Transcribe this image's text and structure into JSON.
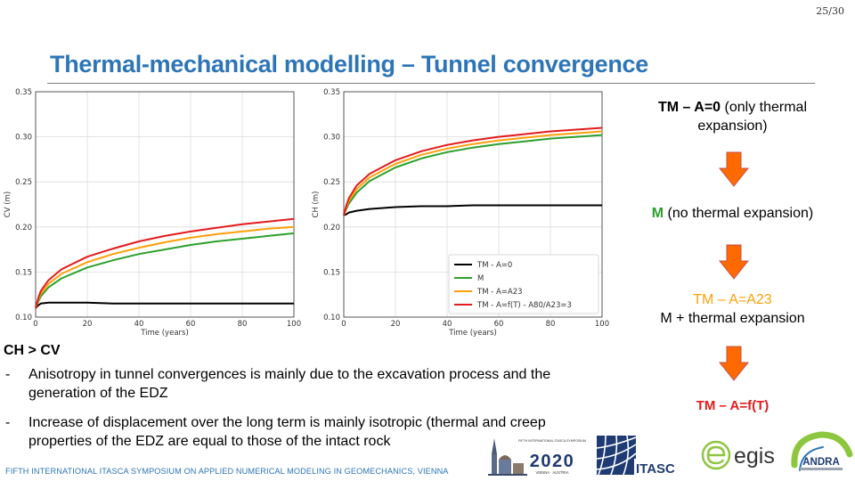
{
  "page_number": "25/30",
  "title": "Thermal-mechanical modelling – Tunnel convergence",
  "chart_data": [
    {
      "type": "line",
      "title": "",
      "xlabel": "Time (years)",
      "ylabel": "CV (m)",
      "xlim": [
        0,
        100
      ],
      "ylim": [
        0.1,
        0.35
      ],
      "xticks": [
        "0",
        "20",
        "40",
        "60",
        "80",
        "100"
      ],
      "yticks": [
        "0.10",
        "0.15",
        "0.20",
        "0.25",
        "0.30",
        "0.35"
      ],
      "grid": true,
      "legend": "none",
      "x": [
        0,
        1,
        2,
        5,
        10,
        20,
        30,
        40,
        50,
        60,
        70,
        80,
        90,
        100
      ],
      "series": [
        {
          "name": "TM - A=0",
          "color": "#000000",
          "values": [
            0.11,
            0.113,
            0.115,
            0.116,
            0.116,
            0.116,
            0.115,
            0.115,
            0.115,
            0.115,
            0.115,
            0.115,
            0.115,
            0.115
          ]
        },
        {
          "name": "M",
          "color": "#2CA02C",
          "values": [
            0.11,
            0.117,
            0.123,
            0.133,
            0.143,
            0.155,
            0.163,
            0.17,
            0.175,
            0.18,
            0.184,
            0.187,
            0.19,
            0.193
          ]
        },
        {
          "name": "TM - A=A23",
          "color": "#FF9F0A",
          "values": [
            0.11,
            0.119,
            0.126,
            0.137,
            0.148,
            0.161,
            0.17,
            0.177,
            0.183,
            0.188,
            0.192,
            0.195,
            0.198,
            0.2
          ]
        },
        {
          "name": "TM - A=f(T) - A80/A23=3",
          "color": "#E41A1C",
          "values": [
            0.11,
            0.121,
            0.129,
            0.141,
            0.153,
            0.167,
            0.176,
            0.184,
            0.19,
            0.195,
            0.199,
            0.203,
            0.206,
            0.209
          ]
        }
      ]
    },
    {
      "type": "line",
      "title": "",
      "xlabel": "Time (years)",
      "ylabel": "CH (m)",
      "xlim": [
        0,
        100
      ],
      "ylim": [
        0.1,
        0.35
      ],
      "xticks": [
        "0",
        "20",
        "40",
        "60",
        "80",
        "100"
      ],
      "yticks": [
        "0.10",
        "0.15",
        "0.20",
        "0.25",
        "0.30",
        "0.35"
      ],
      "grid": true,
      "legend": "bottom-right",
      "x": [
        0,
        1,
        2,
        5,
        10,
        20,
        30,
        40,
        50,
        60,
        70,
        80,
        90,
        100
      ],
      "series": [
        {
          "name": "TM - A=0",
          "color": "#000000",
          "values": [
            0.213,
            0.214,
            0.216,
            0.218,
            0.22,
            0.222,
            0.223,
            0.223,
            0.224,
            0.224,
            0.224,
            0.224,
            0.224,
            0.224
          ]
        },
        {
          "name": "M",
          "color": "#2CA02C",
          "values": [
            0.213,
            0.22,
            0.226,
            0.238,
            0.251,
            0.266,
            0.276,
            0.283,
            0.288,
            0.292,
            0.295,
            0.298,
            0.3,
            0.302
          ]
        },
        {
          "name": "TM - A=A23",
          "color": "#FF9F0A",
          "values": [
            0.213,
            0.222,
            0.229,
            0.242,
            0.255,
            0.27,
            0.28,
            0.287,
            0.292,
            0.296,
            0.299,
            0.302,
            0.304,
            0.306
          ]
        },
        {
          "name": "TM - A=f(T) - A80/A23=3",
          "color": "#E41A1C",
          "values": [
            0.213,
            0.224,
            0.232,
            0.246,
            0.259,
            0.274,
            0.284,
            0.291,
            0.296,
            0.3,
            0.303,
            0.306,
            0.308,
            0.31
          ]
        }
      ]
    }
  ],
  "flow": {
    "step1_bold": "TM – A=0",
    "step1_rest": " (only thermal expansion)",
    "step2_bold": "M",
    "step2_rest": " (no thermal expansion)",
    "step3_line1": "TM – A=A23",
    "step3_line2": "M + thermal expansion",
    "step4": "TM – A=f(T)",
    "colors": {
      "step2": "#2CA02C",
      "step3": "#FF9F0A",
      "step4": "#E41A1C",
      "arrow_fill": "#FF6A00",
      "arrow_stroke": "#C0504D"
    }
  },
  "text": {
    "ch_cv": "CH > CV",
    "bullet1": "Anisotropy in tunnel convergences is mainly due to the excavation process and the generation of the EDZ",
    "bullet2": "Increase of displacement over the long term is mainly isotropic (thermal and creep properties of the EDZ are equal to those of the intact rock",
    "dash": "-"
  },
  "footer": "FIFTH INTERNATIONAL ITASCA SYMPOSIUM ON APPLIED NUMERICAL MODELING IN GEOMECHANICS, VIENNA",
  "logos": {
    "symposium_small": "FIFTH INTERNATIONAL ITASCA SYMPOSIUM",
    "year": "2020",
    "city": "VIENNA · AUSTRIA",
    "itasca": "ITASCA",
    "egis": "egis",
    "andra": "ANDRA"
  }
}
